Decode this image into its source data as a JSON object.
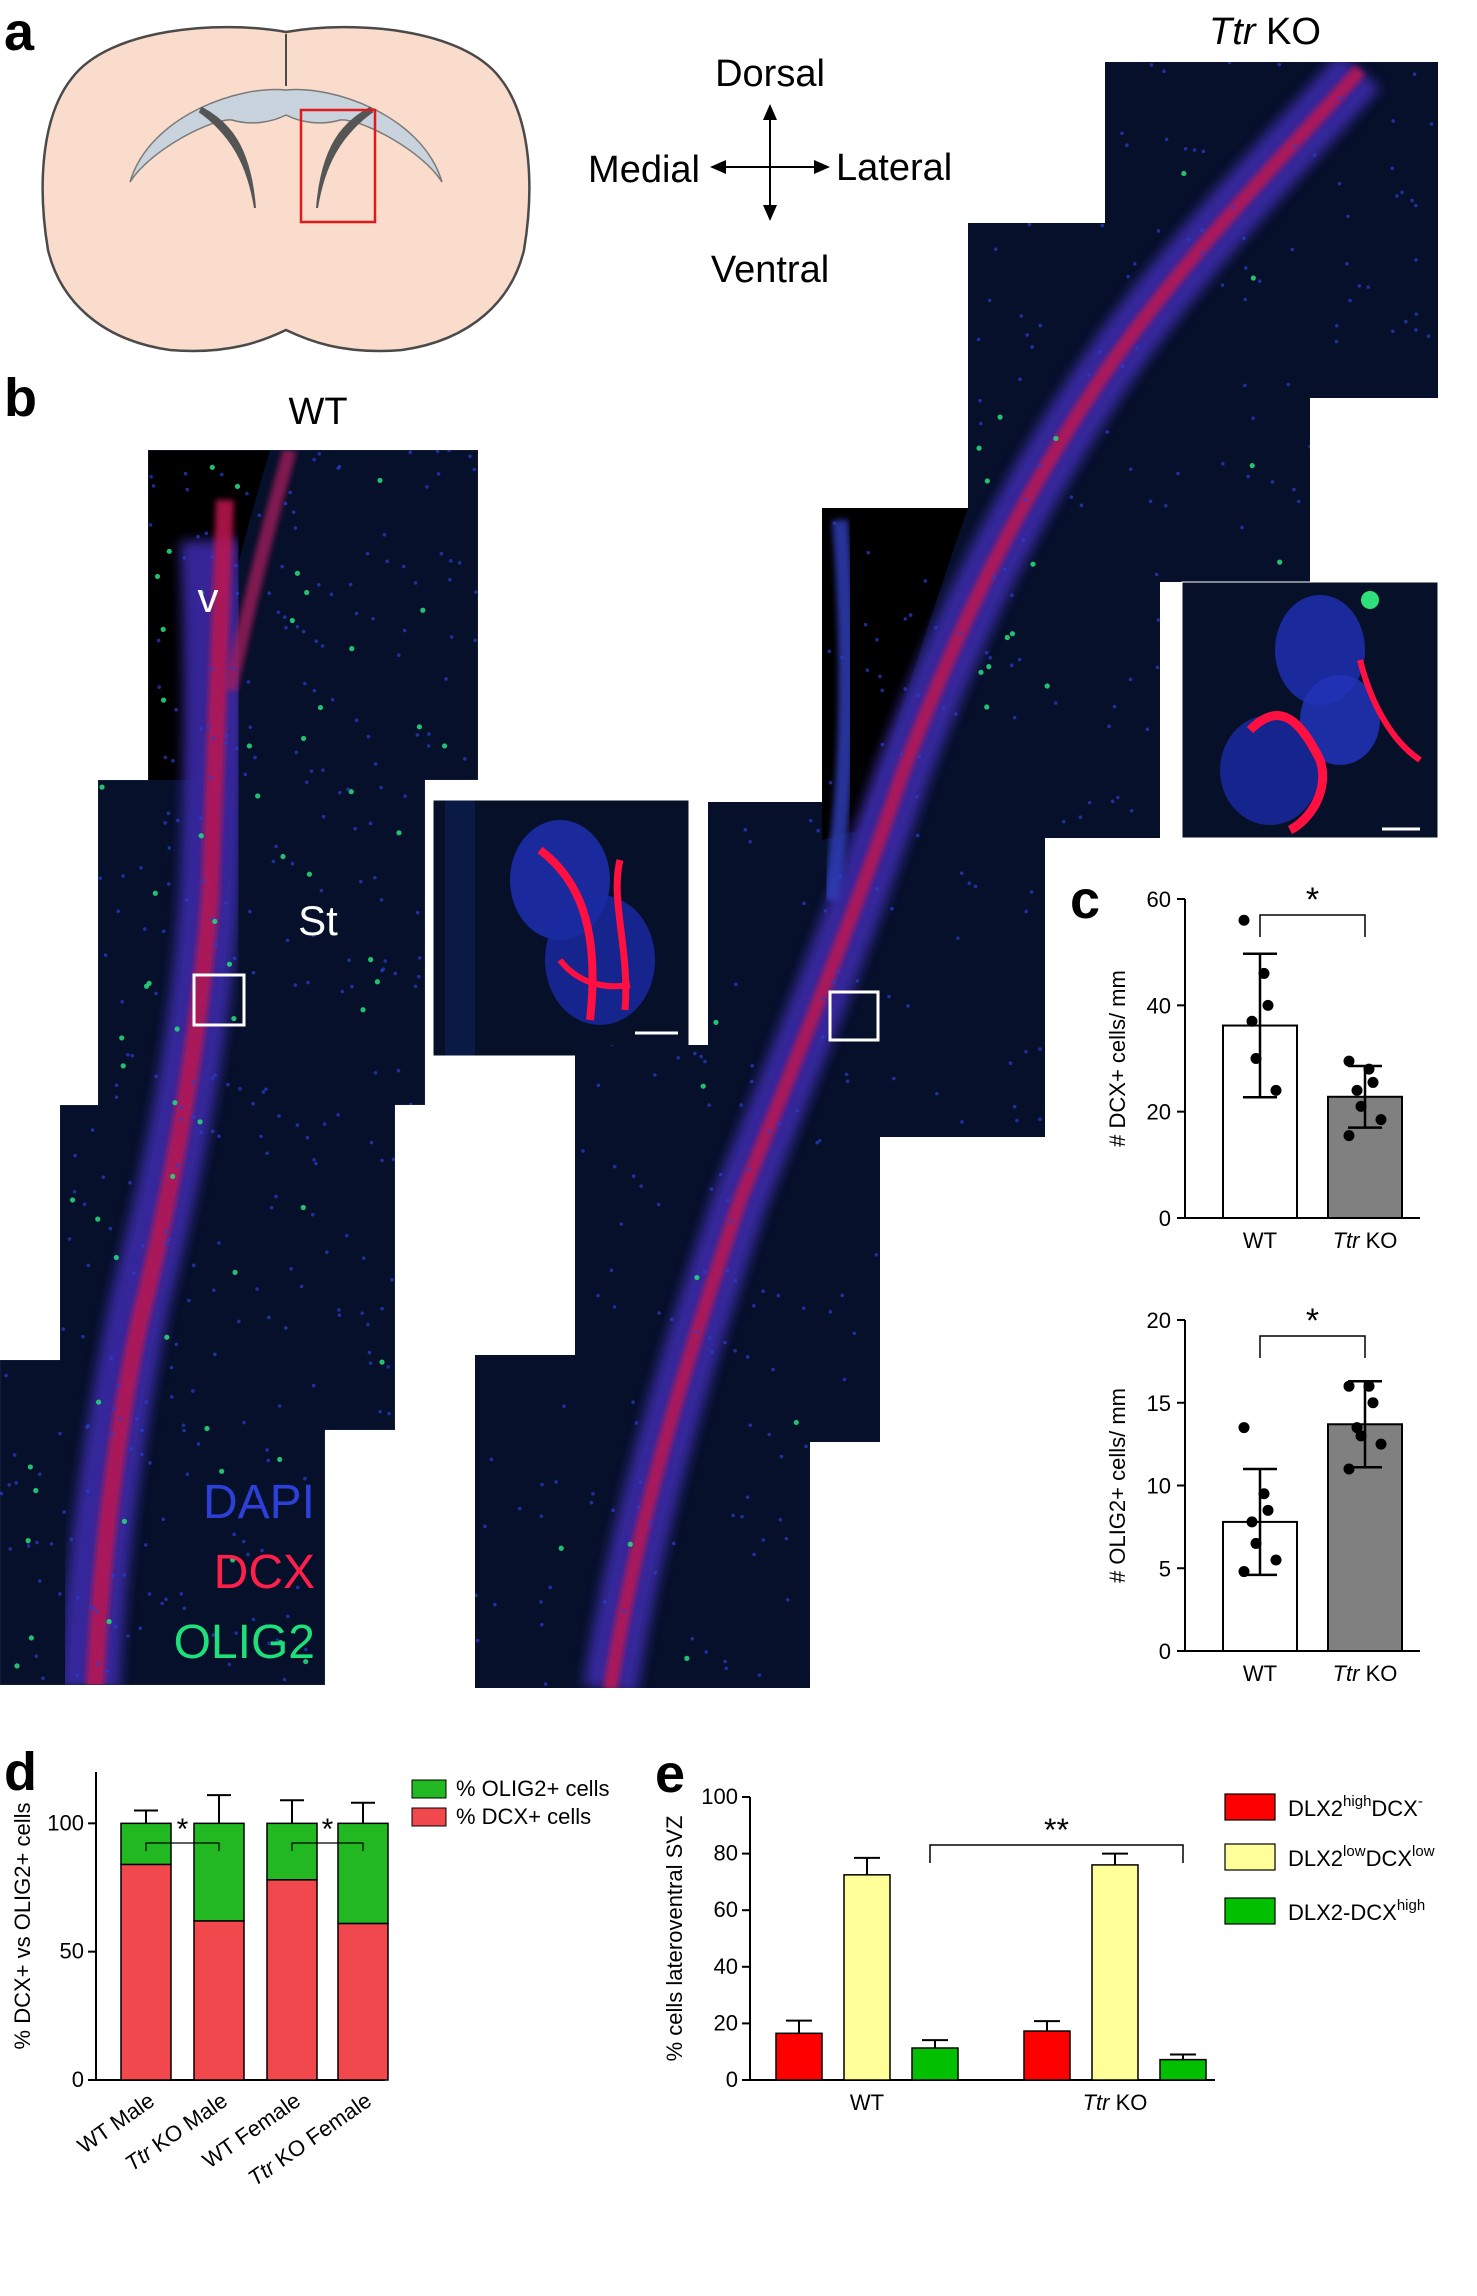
{
  "panel_labels": {
    "a": "a",
    "b": "b",
    "c": "c",
    "d": "d",
    "e": "e"
  },
  "orientation": {
    "dorsal": "Dorsal",
    "ventral": "Ventral",
    "medial": "Medial",
    "lateral": "Lateral"
  },
  "micrographs": {
    "wt_title": "WT",
    "ko_title_italic": "Ttr",
    "ko_title_rest": " KO",
    "label_v": "v",
    "label_st": "St",
    "legend": [
      {
        "text": "DAPI",
        "color": "#2c3fd6"
      },
      {
        "text": "DCX",
        "color": "#ff1f4b"
      },
      {
        "text": "OLIG2",
        "color": "#1ee07a"
      }
    ]
  },
  "colors": {
    "wt_bar": "#ffffff",
    "ko_bar": "#808080",
    "dcx_red": "#f0484d",
    "olig2_green": "#22b822",
    "e_red": "#ff0000",
    "e_yellow": "#ffff99",
    "e_green": "#00c000",
    "brain_fill": "#f9dccb",
    "ventricle_fill": "#c9d3dd",
    "roi_box": "#e0191b"
  },
  "chart_data": [
    {
      "id": "c_top",
      "type": "bar",
      "categories": [
        "WT",
        "Ttr KO"
      ],
      "category_italic_prefix": [
        "",
        "Ttr"
      ],
      "category_suffix": [
        "WT",
        " KO"
      ],
      "values": [
        36.2,
        22.8
      ],
      "sd": [
        13.5,
        5.8
      ],
      "points": [
        [
          56,
          46,
          40,
          37,
          30,
          24
        ],
        [
          29.5,
          28,
          25.5,
          24,
          21,
          18.5,
          15.5
        ]
      ],
      "ylabel": "# DCX+ cells/ mm",
      "ylim": [
        0,
        60
      ],
      "yticks": [
        0,
        20,
        40,
        60
      ],
      "significance": "*"
    },
    {
      "id": "c_bottom",
      "type": "bar",
      "categories": [
        "WT",
        "Ttr KO"
      ],
      "category_italic_prefix": [
        "",
        "Ttr"
      ],
      "category_suffix": [
        "WT",
        " KO"
      ],
      "values": [
        7.8,
        13.7
      ],
      "sd": [
        3.2,
        2.6
      ],
      "points": [
        [
          13.5,
          9.5,
          8.5,
          7.8,
          6.5,
          5.5,
          4.8
        ],
        [
          16,
          16,
          15,
          13.5,
          13,
          12.5,
          11
        ]
      ],
      "ylabel": "# OLIG2+ cells/ mm",
      "ylim": [
        0,
        20
      ],
      "yticks": [
        0,
        5,
        10,
        15,
        20
      ],
      "significance": "*"
    },
    {
      "id": "d",
      "type": "bar",
      "stacked": true,
      "categories": [
        "WT Male",
        "Ttr KO Male",
        "WT Female",
        "Ttr KO Female"
      ],
      "category_italic_prefix": [
        "",
        "Ttr",
        "",
        "Ttr"
      ],
      "category_suffix": [
        "WT Male",
        " KO Male",
        "WT Female",
        " KO Female"
      ],
      "series": [
        {
          "name": "% DCX+ cells",
          "values": [
            84,
            62,
            78,
            61
          ],
          "sd": [
            5,
            10,
            9,
            7
          ]
        },
        {
          "name": "% OLIG2+ cells",
          "values": [
            16,
            38,
            22,
            39
          ],
          "sd": [
            5,
            11,
            9,
            8
          ]
        }
      ],
      "ylabel": "% DCX+ vs OLIG2+ cells",
      "ylim": [
        0,
        120
      ],
      "yticks": [
        0,
        50,
        100
      ],
      "legend_position": "top-right",
      "significance": [
        [
          "WT Male",
          "Ttr KO Male",
          "*"
        ],
        [
          "WT Female",
          "Ttr KO Female",
          "*"
        ]
      ]
    },
    {
      "id": "e",
      "type": "bar",
      "categories": [
        "WT",
        "Ttr KO"
      ],
      "category_italic_prefix": [
        "",
        "Ttr"
      ],
      "category_suffix": [
        "WT",
        " KO"
      ],
      "series": [
        {
          "name": "DLX2highDCX-",
          "base": "DLX2",
          "sup1": "high",
          "mid": "DCX",
          "sup2": "-",
          "values": [
            16.5,
            17.3
          ],
          "sd": [
            4.5,
            3.5
          ]
        },
        {
          "name": "DLX2lowDCXlow",
          "base": "DLX2",
          "sup1": "low",
          "mid": "DCX",
          "sup2": "low",
          "values": [
            72.5,
            76
          ],
          "sd": [
            6,
            4
          ]
        },
        {
          "name": "DLX2-DCXhigh",
          "base": "DLX2-DCX",
          "sup1": "high",
          "mid": "",
          "sup2": "",
          "values": [
            11.3,
            7.2
          ],
          "sd": [
            2.8,
            1.8
          ]
        }
      ],
      "ylabel": "% cells lateroventral SVZ",
      "ylim": [
        0,
        100
      ],
      "yticks": [
        0,
        20,
        40,
        60,
        80,
        100
      ],
      "legend_position": "top-right",
      "significance": "**"
    }
  ]
}
